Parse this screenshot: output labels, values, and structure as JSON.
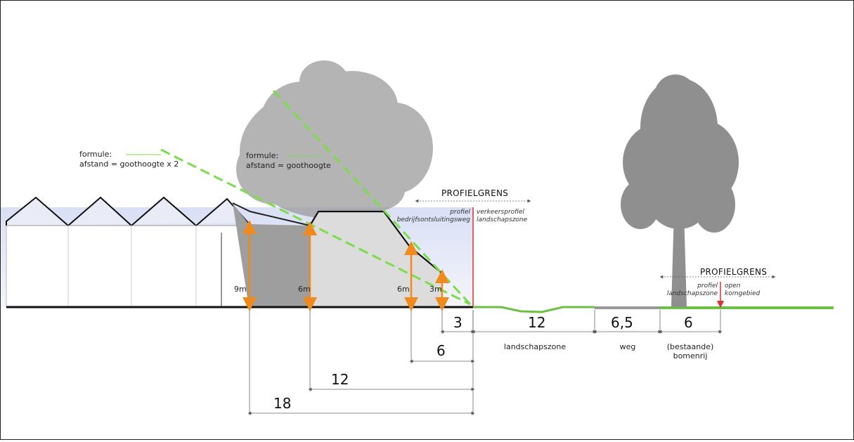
{
  "formulas": [
    {
      "title": "formule:",
      "expr": "afstand = goothoogte x 2"
    },
    {
      "title": "formule:",
      "expr": "afstand = goothoogte"
    }
  ],
  "profile_boundaries": [
    {
      "title": "PROFIELGRENS",
      "left": [
        "profiel",
        "bedrijfsontsluitingsweg"
      ],
      "right": [
        "verkeersprofiel",
        "landschapszone"
      ]
    },
    {
      "title": "PROFIELGRENS",
      "left": [
        "profiel",
        "landschapszone"
      ],
      "right": [
        "open",
        "komgebied"
      ]
    }
  ],
  "heights": [
    "9m",
    "6m",
    "6m",
    "3m"
  ],
  "distances": [
    "3",
    "6",
    "12",
    "18"
  ],
  "zones": [
    {
      "width": "12",
      "name": [
        "landschapszone"
      ]
    },
    {
      "width": "6,5",
      "name": [
        "weg"
      ]
    },
    {
      "width": "6",
      "name": [
        "(bestaande)",
        "bomenrij"
      ]
    }
  ],
  "colors": {
    "dashed_line": "#7ddc4a",
    "height_arrow": "#f08a1c",
    "boundary": "#e03030",
    "ground_green": "#6cc043",
    "road": "#999999",
    "sky": "#dde3f5",
    "tree": "#8f8f8f"
  }
}
